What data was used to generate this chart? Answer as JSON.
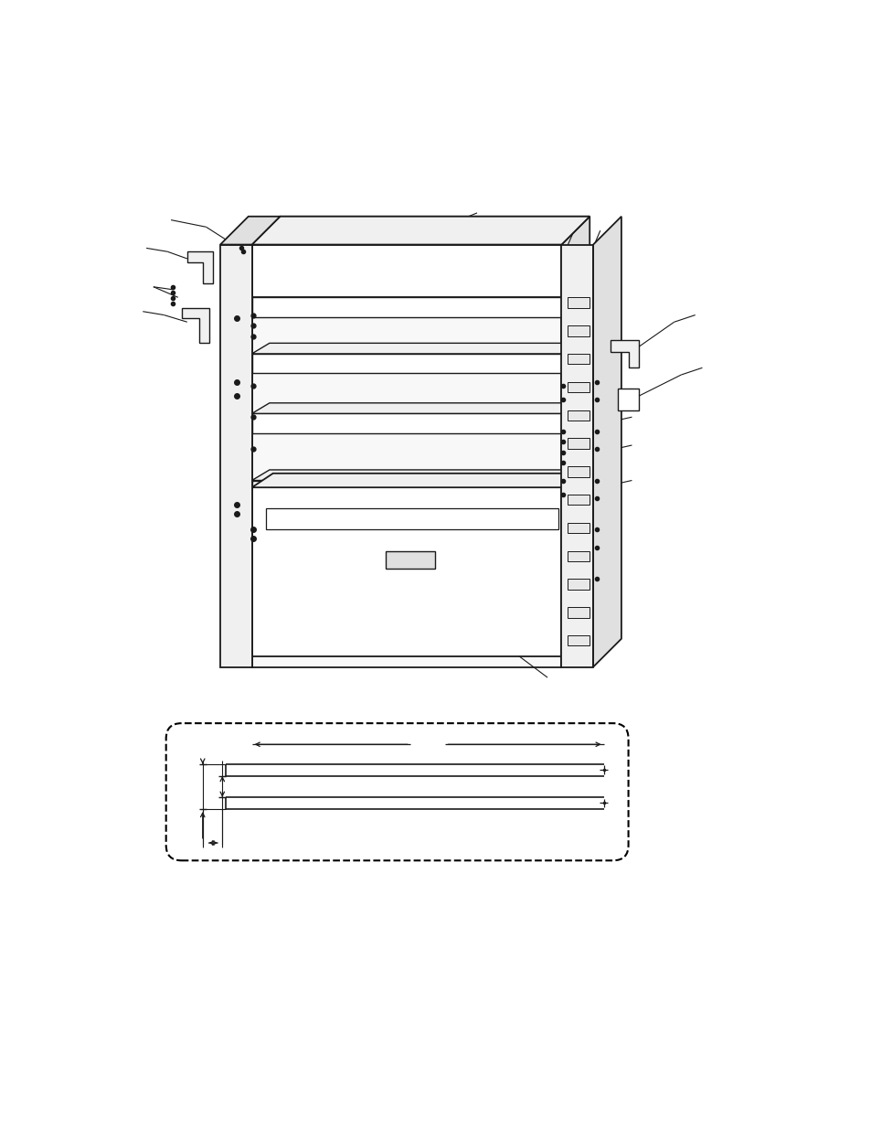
{
  "bg_color": "#ffffff",
  "line_color": "#1a1a1a",
  "fig_width": 9.54,
  "fig_height": 12.35,
  "dpi": 100,
  "lw_main": 1.3,
  "lw_thin": 0.7,
  "lw_leader": 0.8,
  "fill_light": "#f0f0f0",
  "fill_white": "#ffffff",
  "fill_med": "#e0e0e0"
}
